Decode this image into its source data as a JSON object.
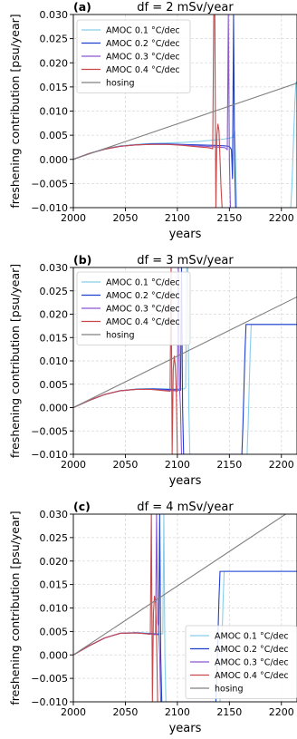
{
  "chart_data": [
    {
      "type": "line",
      "panel_label": "(a)",
      "title": "df = 2 mSv/year",
      "xlabel": "years",
      "ylabel": "freshening contribution [psu/year]",
      "xlim": [
        2000,
        2215
      ],
      "ylim": [
        -0.01,
        0.03
      ],
      "xticks": [
        "2000",
        "2050",
        "2100",
        "2150",
        "2200"
      ],
      "yticks": [
        "−0.010",
        "−0.005",
        "0.000",
        "0.005",
        "0.010",
        "0.015",
        "0.020",
        "0.025",
        "0.030"
      ],
      "grid": true,
      "legend_position": "top-left",
      "series": [
        {
          "name": "AMOC 0.1 °C/dec",
          "color": "#87ceeb",
          "x": [
            2000,
            2015,
            2030,
            2045,
            2060,
            2075,
            2090,
            2105,
            2120,
            2135,
            2145,
            2150,
            2154,
            2155,
            2156,
            2157,
            2158,
            2200,
            2209,
            2210,
            2211,
            2212,
            2213,
            2214,
            2215
          ],
          "y": [
            0.0,
            0.0012,
            0.0022,
            0.0028,
            0.0031,
            0.0033,
            0.0034,
            0.0035,
            0.0037,
            0.004,
            0.0042,
            0.0044,
            0.0046,
            0.006,
            0.0,
            -0.01,
            -0.01,
            -0.01,
            -0.01,
            -0.006,
            0.0,
            0.006,
            0.012,
            0.016,
            0.016
          ]
        },
        {
          "name": "AMOC 0.2 °C/dec",
          "color": "#1f3fd0",
          "x": [
            2000,
            2015,
            2030,
            2045,
            2060,
            2075,
            2090,
            2105,
            2120,
            2135,
            2145,
            2150,
            2152,
            2153,
            2154,
            2155,
            2156
          ],
          "y": [
            0.0,
            0.0012,
            0.0021,
            0.0027,
            0.003,
            0.0032,
            0.0032,
            0.0031,
            0.003,
            0.0029,
            0.0028,
            0.0027,
            0.002,
            -0.004,
            0.03,
            0.0,
            -0.01
          ]
        },
        {
          "name": "AMOC 0.3 °C/dec",
          "color": "#8a58d0",
          "x": [
            2000,
            2015,
            2030,
            2045,
            2060,
            2075,
            2090,
            2105,
            2120,
            2135,
            2142,
            2146,
            2148,
            2149,
            2150,
            2151
          ],
          "y": [
            0.0,
            0.0012,
            0.0021,
            0.0027,
            0.003,
            0.0031,
            0.0031,
            0.003,
            0.0028,
            0.0026,
            0.0025,
            0.0024,
            0.002,
            0.03,
            0.0,
            -0.01
          ]
        },
        {
          "name": "AMOC 0.4 °C/dec",
          "color": "#c8474a",
          "x": [
            2000,
            2015,
            2030,
            2045,
            2060,
            2075,
            2090,
            2105,
            2120,
            2130,
            2134,
            2135,
            2136,
            2137,
            2138,
            2139,
            2140,
            2141,
            2142,
            2143
          ],
          "y": [
            0.0,
            0.0012,
            0.0021,
            0.0027,
            0.003,
            0.0031,
            0.0031,
            0.0029,
            0.0026,
            0.0024,
            0.0022,
            0.03,
            0.03,
            -0.01,
            0.005,
            0.0073,
            0.006,
            0.0,
            -0.006,
            -0.01
          ]
        },
        {
          "name": "hosing",
          "color": "#808080",
          "x": [
            2000,
            2215
          ],
          "y": [
            0.0,
            0.0158
          ]
        }
      ]
    },
    {
      "type": "line",
      "panel_label": "(b)",
      "title": "df = 3 mSv/year",
      "xlabel": "years",
      "ylabel": "freshening contribution [psu/year]",
      "xlim": [
        2000,
        2215
      ],
      "ylim": [
        -0.01,
        0.03
      ],
      "xticks": [
        "2000",
        "2050",
        "2100",
        "2150",
        "2200"
      ],
      "yticks": [
        "−0.010",
        "−0.005",
        "0.000",
        "0.005",
        "0.010",
        "0.015",
        "0.020",
        "0.025",
        "0.030"
      ],
      "grid": true,
      "legend_position": "top-left",
      "series": [
        {
          "name": "AMOC 0.1 °C/dec",
          "color": "#87ceeb",
          "x": [
            2000,
            2015,
            2030,
            2045,
            2060,
            2075,
            2090,
            2100,
            2106,
            2108,
            2109,
            2110,
            2111,
            2112,
            2113,
            2167,
            2168,
            2169,
            2170,
            2171,
            2172,
            2215
          ],
          "y": [
            0.0,
            0.0015,
            0.0028,
            0.0036,
            0.004,
            0.0041,
            0.004,
            0.004,
            0.004,
            0.0042,
            0.03,
            0.03,
            0.0,
            -0.01,
            -0.01,
            -0.01,
            -0.004,
            0.004,
            0.012,
            0.0178,
            0.0178,
            0.0178
          ]
        },
        {
          "name": "AMOC 0.2 °C/dec",
          "color": "#1f3fd0",
          "x": [
            2000,
            2015,
            2030,
            2045,
            2060,
            2075,
            2090,
            2100,
            2103,
            2104,
            2105,
            2106,
            2107,
            2162,
            2163,
            2164,
            2165,
            2166,
            2167,
            2215
          ],
          "y": [
            0.0,
            0.0015,
            0.0028,
            0.0036,
            0.0039,
            0.004,
            0.0039,
            0.0038,
            0.0037,
            0.03,
            0.0,
            -0.01,
            -0.01,
            -0.01,
            -0.004,
            0.004,
            0.012,
            0.0178,
            0.0178,
            0.0178
          ]
        },
        {
          "name": "AMOC 0.3 °C/dec",
          "color": "#8a58d0",
          "x": [
            2000,
            2015,
            2030,
            2045,
            2060,
            2075,
            2090,
            2098,
            2100,
            2101,
            2102,
            2103,
            2104
          ],
          "y": [
            0.0,
            0.0015,
            0.0028,
            0.0036,
            0.0039,
            0.0039,
            0.0037,
            0.0036,
            0.0035,
            0.03,
            0.005,
            0.0,
            -0.01
          ]
        },
        {
          "name": "AMOC 0.4 °C/dec",
          "color": "#c8474a",
          "x": [
            2000,
            2015,
            2030,
            2045,
            2060,
            2075,
            2088,
            2093,
            2094,
            2095,
            2096,
            2097,
            2098,
            2099,
            2100
          ],
          "y": [
            0.0,
            0.0015,
            0.0028,
            0.0036,
            0.0039,
            0.0039,
            0.0036,
            0.0035,
            0.03,
            -0.01,
            0.008,
            0.011,
            0.009,
            0.003,
            -0.01
          ]
        },
        {
          "name": "hosing",
          "color": "#808080",
          "x": [
            2000,
            2215
          ],
          "y": [
            0.0,
            0.0237
          ]
        }
      ]
    },
    {
      "type": "line",
      "panel_label": "(c)",
      "title": "df = 4 mSv/year",
      "xlabel": "years",
      "ylabel": "freshening contribution [psu/year]",
      "xlim": [
        2000,
        2215
      ],
      "ylim": [
        -0.01,
        0.03
      ],
      "xticks": [
        "2000",
        "2050",
        "2100",
        "2150",
        "2200"
      ],
      "yticks": [
        "−0.010",
        "−0.005",
        "0.000",
        "0.005",
        "0.010",
        "0.015",
        "0.020",
        "0.025",
        "0.030"
      ],
      "grid": true,
      "legend_position": "bottom-right",
      "series": [
        {
          "name": "AMOC 0.1 °C/dec",
          "color": "#87ceeb",
          "x": [
            2000,
            2015,
            2030,
            2045,
            2060,
            2075,
            2082,
            2086,
            2087,
            2088,
            2089,
            2090,
            2141,
            2142,
            2143,
            2144,
            2145,
            2146,
            2215
          ],
          "y": [
            0.0,
            0.0019,
            0.0036,
            0.0046,
            0.0048,
            0.0046,
            0.0045,
            0.0045,
            0.03,
            0.0,
            -0.01,
            -0.01,
            -0.01,
            -0.004,
            0.004,
            0.012,
            0.0178,
            0.0178,
            0.0178
          ]
        },
        {
          "name": "AMOC 0.2 °C/dec",
          "color": "#1f3fd0",
          "x": [
            2000,
            2015,
            2030,
            2045,
            2060,
            2075,
            2080,
            2082,
            2083,
            2084,
            2085,
            2086,
            2137,
            2138,
            2139,
            2140,
            2141,
            2142,
            2215
          ],
          "y": [
            0.0,
            0.0019,
            0.0036,
            0.0046,
            0.0047,
            0.0045,
            0.0044,
            0.0043,
            0.03,
            0.0,
            -0.01,
            -0.01,
            -0.01,
            -0.004,
            0.004,
            0.012,
            0.0178,
            0.0178,
            0.0178
          ]
        },
        {
          "name": "AMOC 0.3 °C/dec",
          "color": "#8a58d0",
          "x": [
            2000,
            2015,
            2030,
            2045,
            2060,
            2075,
            2079,
            2080,
            2081,
            2082,
            2083,
            2084
          ],
          "y": [
            0.0,
            0.0019,
            0.0036,
            0.0046,
            0.0047,
            0.0044,
            0.0043,
            0.03,
            0.007,
            0.006,
            0.0,
            -0.01
          ]
        },
        {
          "name": "AMOC 0.4 °C/dec",
          "color": "#c8474a",
          "x": [
            2000,
            2015,
            2030,
            2045,
            2060,
            2070,
            2074,
            2075,
            2076,
            2077,
            2078,
            2079,
            2080,
            2081
          ],
          "y": [
            0.0,
            0.0019,
            0.0036,
            0.0046,
            0.0047,
            0.0045,
            0.0044,
            0.03,
            -0.01,
            0.009,
            0.0125,
            0.011,
            0.004,
            -0.01
          ]
        },
        {
          "name": "hosing",
          "color": "#808080",
          "x": [
            2000,
            2215
          ],
          "y": [
            0.0,
            0.0316
          ]
        }
      ]
    }
  ]
}
